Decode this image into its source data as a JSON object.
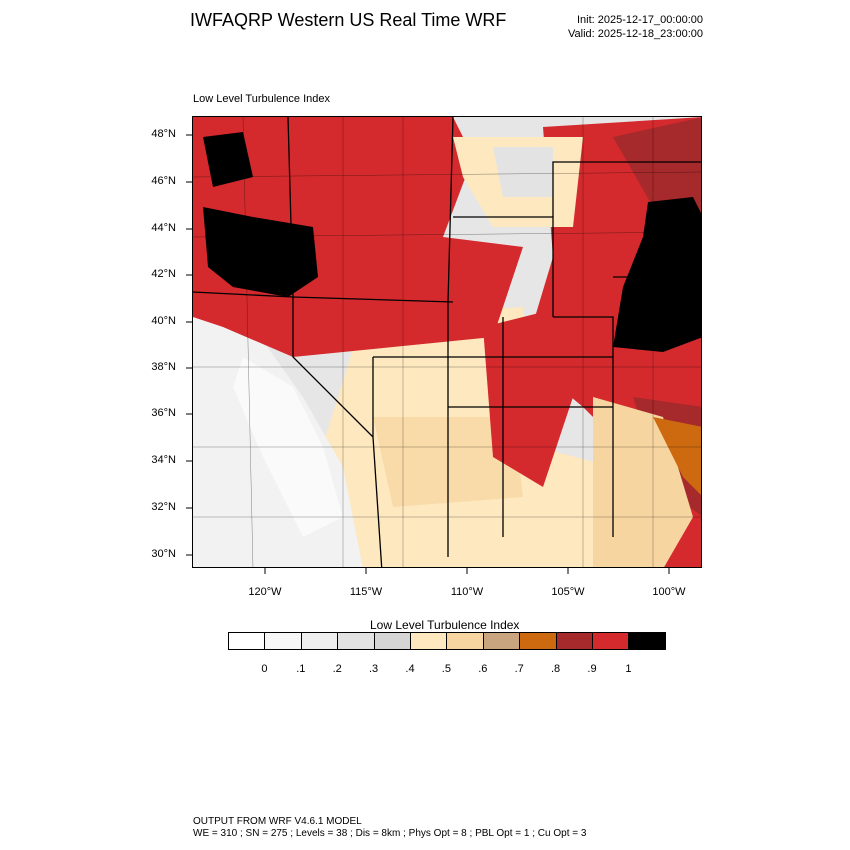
{
  "header": {
    "title": "IWFAQRP Western US Real Time WRF",
    "init": "Init: 2025-12-17_00:00:00",
    "valid": "Valid: 2025-12-18_23:00:00"
  },
  "map": {
    "field_label": "Low Level Turbulence Index",
    "lat_labels": [
      "48°N",
      "46°N",
      "44°N",
      "42°N",
      "40°N",
      "38°N",
      "36°N",
      "34°N",
      "32°N",
      "30°N"
    ],
    "lon_labels": [
      "120°W",
      "115°W",
      "110°W",
      "105°W",
      "100°W"
    ]
  },
  "colorbar": {
    "title": "Low Level Turbulence Index",
    "colors": [
      "#ffffff",
      "#f7f7f7",
      "#efefef",
      "#e3e3e3",
      "#d5d5d5",
      "#fde8bf",
      "#f7d5a0",
      "#c8a57f",
      "#cd6a10",
      "#a6292b",
      "#d42a2d",
      "#000000"
    ],
    "labels": [
      "0",
      ".1",
      ".2",
      ".3",
      ".4",
      ".5",
      ".6",
      ".7",
      ".8",
      ".9",
      "1"
    ]
  },
  "footer": {
    "line1": "OUTPUT FROM WRF V4.6.1 MODEL",
    "line2": "WE = 310 ; SN = 275 ; Levels = 38 ; Dis = 8km ; Phys Opt = 8 ; PBL Opt = 1 ; Cu Opt = 3"
  }
}
